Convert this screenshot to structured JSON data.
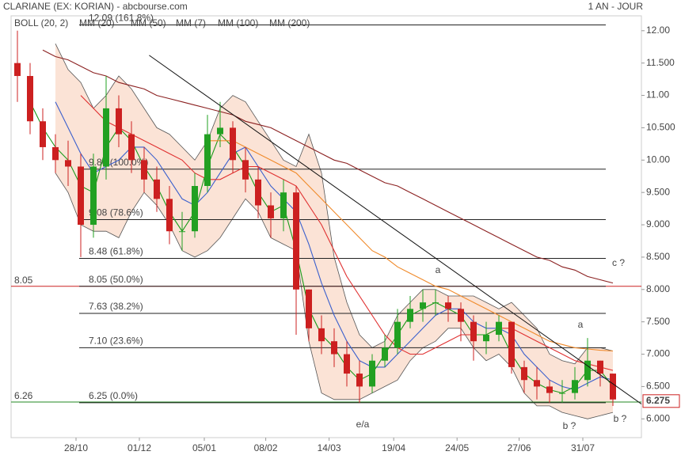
{
  "chart_data": {
    "type": "candlestick",
    "title": "CLARIANE (EX: KORIAN) - abcbourse.com",
    "period": "1 AN - JOUR",
    "xlim": [
      0,
      49.75
    ],
    "ylim": [
      5.71,
      12.23
    ],
    "xticks": [
      {
        "value": 5.125,
        "label": "28/10"
      },
      {
        "value": 10.125,
        "label": "01/12"
      },
      {
        "value": 15.25,
        "label": "05/01"
      },
      {
        "value": 20.1,
        "label": "08/02"
      },
      {
        "value": 25.1,
        "label": "14/03"
      },
      {
        "value": 30.2,
        "label": "19/04"
      },
      {
        "value": 35.2,
        "label": "24/05"
      },
      {
        "value": 40.1,
        "label": "27/06"
      },
      {
        "value": 45.125,
        "label": "31/07"
      }
    ],
    "yticks": [
      {
        "value": 6,
        "label": "6.000"
      },
      {
        "value": 6.5,
        "label": "6.500"
      },
      {
        "value": 7,
        "label": "7.000"
      },
      {
        "value": 7.5,
        "label": "7.500"
      },
      {
        "value": 8,
        "label": "8.000"
      },
      {
        "value": 8.5,
        "label": "8.500"
      },
      {
        "value": 9,
        "label": "9.000"
      },
      {
        "value": 9.5,
        "label": "9.500"
      },
      {
        "value": 10,
        "label": "10.00"
      },
      {
        "value": 10.5,
        "label": "10.500"
      },
      {
        "value": 11,
        "label": "11.00"
      },
      {
        "value": 11.5,
        "label": "11.500"
      },
      {
        "value": 12,
        "label": "12.00"
      }
    ],
    "up_color": "#22a022",
    "down_color": "#cc2020",
    "x": [
      0.5,
      1.5,
      2.5,
      3.5,
      4.5,
      5.5,
      6.5,
      7.5,
      8.5,
      9.5,
      10.5,
      11.5,
      12.5,
      13.5,
      14.5,
      15.5,
      16.5,
      17.5,
      18.5,
      19.5,
      20.5,
      21.5,
      22.5,
      23.5,
      24.5,
      25.5,
      26.5,
      27.5,
      28.5,
      29.5,
      30.5,
      31.5,
      32.5,
      33.5,
      34.5,
      35.5,
      36.5,
      37.5,
      38.5,
      39.5,
      40.5,
      41.5,
      42.5,
      43.5,
      44.5,
      45.5,
      46.5,
      47.5
    ],
    "open": [
      11.5,
      11.3,
      10.6,
      10.2,
      10.0,
      9.9,
      9.0,
      9.9,
      10.8,
      10.4,
      10.0,
      9.7,
      9.4,
      8.9,
      8.9,
      9.6,
      10.4,
      10.5,
      10.0,
      9.7,
      9.3,
      9.1,
      9.5,
      8.0,
      7.4,
      7.2,
      7.0,
      6.7,
      6.5,
      6.9,
      7.1,
      7.5,
      7.7,
      7.8,
      7.8,
      7.7,
      7.5,
      7.2,
      7.3,
      7.5,
      6.8,
      6.6,
      6.5,
      6.4,
      6.4,
      6.6,
      6.9,
      6.7
    ],
    "high": [
      12.0,
      11.5,
      10.8,
      10.4,
      10.3,
      10.1,
      10.1,
      11.3,
      11.0,
      10.6,
      10.2,
      9.9,
      9.6,
      9.2,
      9.8,
      10.7,
      10.9,
      10.6,
      10.2,
      9.9,
      9.5,
      9.7,
      9.6,
      8.0,
      7.6,
      7.4,
      7.2,
      6.9,
      7.0,
      7.3,
      7.7,
      7.9,
      8.0,
      8.0,
      7.9,
      7.8,
      7.6,
      7.5,
      7.6,
      7.5,
      6.9,
      6.8,
      6.6,
      6.6,
      6.8,
      7.25,
      6.9,
      6.7
    ],
    "low": [
      10.9,
      10.4,
      10.0,
      9.8,
      9.6,
      8.5,
      8.8,
      9.7,
      10.2,
      9.8,
      9.5,
      9.2,
      8.7,
      8.6,
      8.8,
      9.5,
      10.2,
      9.8,
      9.5,
      9.1,
      8.8,
      8.9,
      7.3,
      7.2,
      7.0,
      6.8,
      6.5,
      6.25,
      6.4,
      6.8,
      7.0,
      7.4,
      7.5,
      7.6,
      7.5,
      7.2,
      6.9,
      7.0,
      7.2,
      6.7,
      6.4,
      6.3,
      6.25,
      6.25,
      6.3,
      6.5,
      6.5,
      6.2
    ],
    "close": [
      11.3,
      10.6,
      10.2,
      10.0,
      9.9,
      9.0,
      9.9,
      10.8,
      10.4,
      10.0,
      9.7,
      9.4,
      8.9,
      8.9,
      9.6,
      10.4,
      10.5,
      10.0,
      9.7,
      9.3,
      9.1,
      9.5,
      8.0,
      7.4,
      7.2,
      7.0,
      6.7,
      6.5,
      6.9,
      7.1,
      7.5,
      7.7,
      7.8,
      7.8,
      7.7,
      7.5,
      7.2,
      7.3,
      7.5,
      6.8,
      6.6,
      6.5,
      6.4,
      6.4,
      6.6,
      6.9,
      6.7,
      6.3
    ],
    "bollinger": {
      "name": "BOLL (20, 2)",
      "color": "#555555",
      "fill": "#fbe3d6",
      "upper": [
        null,
        null,
        null,
        11.8,
        11.4,
        11.2,
        10.8,
        11.0,
        11.3,
        11.1,
        10.8,
        10.5,
        10.4,
        10.2,
        10.0,
        10.3,
        10.8,
        11.0,
        10.9,
        10.6,
        10.3,
        10.0,
        9.9,
        10.4,
        9.8,
        8.5,
        7.8,
        7.3,
        7.1,
        7.2,
        7.6,
        7.8,
        8.0,
        8.0,
        7.9,
        7.9,
        7.9,
        7.8,
        7.7,
        7.8,
        7.6,
        7.4,
        7.0,
        6.9,
        6.85,
        7.1,
        7.1,
        7.05
      ],
      "lower": [
        null,
        null,
        null,
        9.8,
        9.5,
        9.0,
        8.9,
        8.9,
        8.8,
        9.2,
        9.5,
        9.3,
        9.0,
        8.6,
        8.5,
        8.6,
        8.8,
        9.1,
        9.4,
        9.2,
        8.8,
        8.7,
        8.6,
        7.2,
        6.4,
        6.3,
        6.3,
        6.3,
        6.4,
        6.5,
        6.6,
        6.9,
        7.1,
        7.2,
        7.4,
        7.4,
        7.1,
        6.9,
        7.0,
        6.8,
        6.4,
        6.2,
        6.2,
        6.1,
        6.05,
        6.0,
        6.05,
        6.1
      ]
    },
    "series": [
      {
        "name": "MM (20)",
        "color": "#3a5fcd",
        "values": [
          null,
          null,
          null,
          10.9,
          10.5,
          10.1,
          9.8,
          9.9,
          10.0,
          10.2,
          10.2,
          10.0,
          9.7,
          9.4,
          9.3,
          9.5,
          9.8,
          10.1,
          10.2,
          9.9,
          9.6,
          9.4,
          9.2,
          8.7,
          8.1,
          7.6,
          7.2,
          6.9,
          6.8,
          6.8,
          7.0,
          7.2,
          7.4,
          7.6,
          7.7,
          7.7,
          7.5,
          7.4,
          7.4,
          7.3,
          7.0,
          6.8,
          6.6,
          6.5,
          6.45,
          6.55,
          6.65,
          6.6
        ]
      },
      {
        "name": "MM (50)",
        "color": "#e03030",
        "values": [
          null,
          null,
          null,
          null,
          null,
          11.0,
          10.8,
          10.6,
          10.5,
          10.4,
          10.3,
          10.2,
          10.1,
          10.0,
          9.8,
          9.7,
          9.7,
          9.8,
          9.9,
          9.9,
          9.8,
          9.7,
          9.6,
          9.3,
          9.0,
          8.6,
          8.2,
          7.9,
          7.6,
          7.3,
          7.1,
          7.0,
          7.0,
          7.1,
          7.2,
          7.3,
          7.3,
          7.3,
          7.4,
          7.4,
          7.3,
          7.2,
          7.1,
          7.0,
          6.9,
          6.85,
          6.8,
          6.75
        ]
      },
      {
        "name": "MM (7)",
        "color": "#1a9a1a",
        "values": [
          null,
          10.9,
          10.5,
          10.2,
          10.0,
          9.6,
          9.5,
          10.2,
          10.5,
          10.3,
          9.9,
          9.6,
          9.2,
          8.9,
          9.2,
          9.9,
          10.4,
          10.2,
          9.9,
          9.5,
          9.2,
          9.3,
          8.6,
          7.7,
          7.3,
          7.1,
          6.8,
          6.6,
          6.7,
          7.0,
          7.3,
          7.6,
          7.7,
          7.8,
          7.7,
          7.6,
          7.3,
          7.3,
          7.4,
          7.0,
          6.7,
          6.55,
          6.45,
          6.4,
          6.5,
          6.75,
          6.75,
          6.5
        ]
      },
      {
        "name": "MM (100)",
        "color": "#f08a2a",
        "values": [
          null,
          null,
          null,
          null,
          null,
          null,
          null,
          null,
          null,
          null,
          null,
          null,
          null,
          null,
          null,
          10.3,
          10.3,
          10.3,
          10.2,
          10.1,
          10.0,
          9.9,
          9.8,
          9.6,
          9.4,
          9.2,
          9.0,
          8.8,
          8.6,
          8.5,
          8.35,
          8.25,
          8.15,
          8.05,
          8.0,
          7.9,
          7.8,
          7.7,
          7.6,
          7.5,
          7.4,
          7.3,
          7.2,
          7.15,
          7.1,
          7.08,
          7.06,
          7.05
        ]
      },
      {
        "name": "MM (200)",
        "color": "#8b2020",
        "values": [
          null,
          null,
          11.7,
          11.6,
          11.55,
          11.45,
          11.35,
          11.3,
          11.2,
          11.15,
          11.1,
          11.0,
          10.95,
          10.9,
          10.85,
          10.8,
          10.75,
          10.7,
          10.6,
          10.55,
          10.5,
          10.4,
          10.3,
          10.2,
          10.1,
          10.0,
          9.95,
          9.85,
          9.75,
          9.65,
          9.6,
          9.5,
          9.4,
          9.3,
          9.2,
          9.1,
          9.0,
          8.9,
          8.8,
          8.7,
          8.6,
          8.5,
          8.45,
          8.35,
          8.3,
          8.2,
          8.15,
          8.1
        ]
      }
    ],
    "levels": [
      {
        "value": 12.09,
        "label": "12.09  (161.8%)"
      },
      {
        "value": 9.86,
        "label": "9.86  (100.0%)"
      },
      {
        "value": 9.08,
        "label": "9.08  (78.6%)"
      },
      {
        "value": 8.48,
        "label": "8.48  (61.8%)"
      },
      {
        "value": 8.05,
        "label": "8.05  (50.0%)"
      },
      {
        "value": 7.63,
        "label": "7.63  (38.2%)"
      },
      {
        "value": 7.1,
        "label": "7.10  (23.6%)"
      },
      {
        "value": 6.25,
        "label": "6.25  (0.0%)"
      }
    ],
    "reference_lines": [
      {
        "value": 8.05,
        "color": "#cc2020"
      },
      {
        "value": 6.26,
        "color": "#228822"
      }
    ],
    "last_price": 6.275,
    "trendline": {
      "x": [
        10.9,
        49.75
      ],
      "y": [
        11.62,
        6.23
      ]
    },
    "annotations": [
      "a",
      "b ?",
      "c ?",
      "e/a",
      "a",
      "b ?"
    ]
  }
}
